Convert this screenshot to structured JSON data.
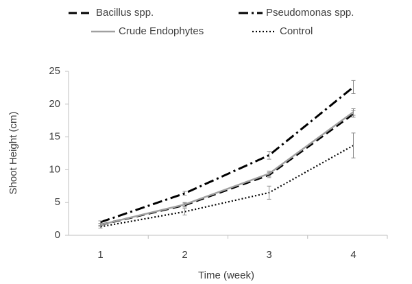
{
  "chart_data": {
    "type": "line",
    "categories": [
      "1",
      "2",
      "3",
      "4"
    ],
    "xlabel": "Time (week)",
    "ylabel": "Shoot Height (cm)",
    "ylim": [
      0,
      25
    ],
    "yticks": [
      0,
      5,
      10,
      15,
      20,
      25
    ],
    "series": [
      {
        "name": "Bacillus spp.",
        "color": "#000000",
        "style": "dashed",
        "values": [
          1.6,
          4.6,
          9.2,
          18.5
        ],
        "errors": [
          0.2,
          0.3,
          0.4,
          0.5
        ]
      },
      {
        "name": "Pseudomonas spp.",
        "color": "#000000",
        "style": "dashdot",
        "values": [
          2.0,
          6.4,
          12.2,
          22.6
        ],
        "errors": [
          0.2,
          0.3,
          0.6,
          1.0
        ]
      },
      {
        "name": "Crude Endophytes",
        "color": "#a0a0a0",
        "style": "solid",
        "values": [
          1.6,
          4.7,
          9.4,
          18.8
        ],
        "errors": [
          0.2,
          0.3,
          0.4,
          0.5
        ]
      },
      {
        "name": "Control",
        "color": "#000000",
        "style": "dotted",
        "values": [
          1.3,
          3.6,
          6.5,
          13.7
        ],
        "errors": [
          0.2,
          0.5,
          1.0,
          1.9
        ]
      }
    ]
  }
}
